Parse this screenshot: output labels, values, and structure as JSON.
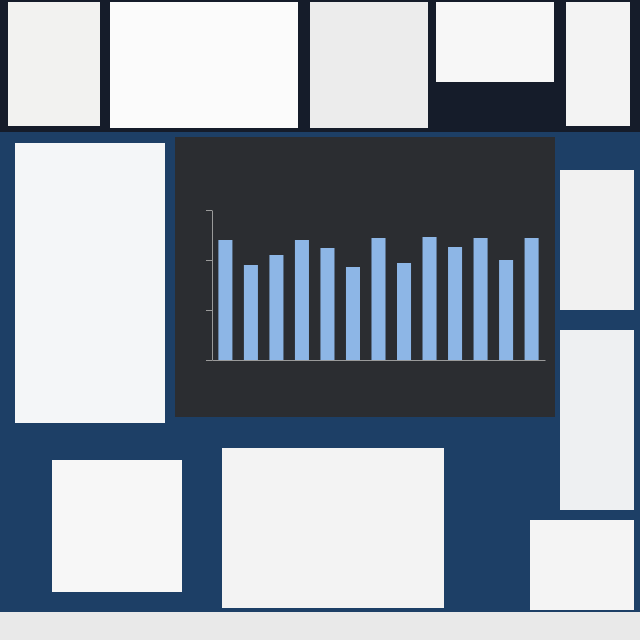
{
  "chart_data": {
    "type": "bar",
    "categories": [
      null,
      null,
      null,
      null,
      null,
      null,
      null,
      null,
      null,
      null,
      null,
      null,
      null
    ],
    "values": [
      120,
      95,
      105,
      120,
      112,
      93,
      122,
      97,
      123,
      113,
      122,
      100,
      122
    ],
    "color": "#8db6e6",
    "ylim": [
      0,
      150
    ],
    "yticks": [
      0,
      50,
      100,
      150
    ],
    "grid": false,
    "tick_labels": false
  }
}
